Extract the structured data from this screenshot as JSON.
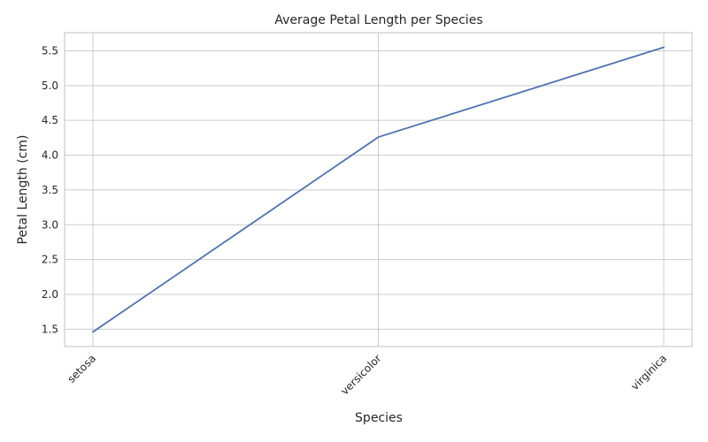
{
  "chart_data": {
    "type": "line",
    "title": "Average Petal Length per Species",
    "xlabel": "Species",
    "ylabel": "Petal Length (cm)",
    "categories": [
      "setosa",
      "versicolor",
      "virginica"
    ],
    "series": [
      {
        "values": [
          1.46,
          4.26,
          5.55
        ]
      }
    ],
    "ylim": [
      1.25,
      5.76
    ],
    "yticks": [
      "1.5",
      "2.0",
      "2.5",
      "3.0",
      "3.5",
      "4.0",
      "4.5",
      "5.0",
      "5.5"
    ],
    "grid": true,
    "line_color": "#4c72b0"
  }
}
